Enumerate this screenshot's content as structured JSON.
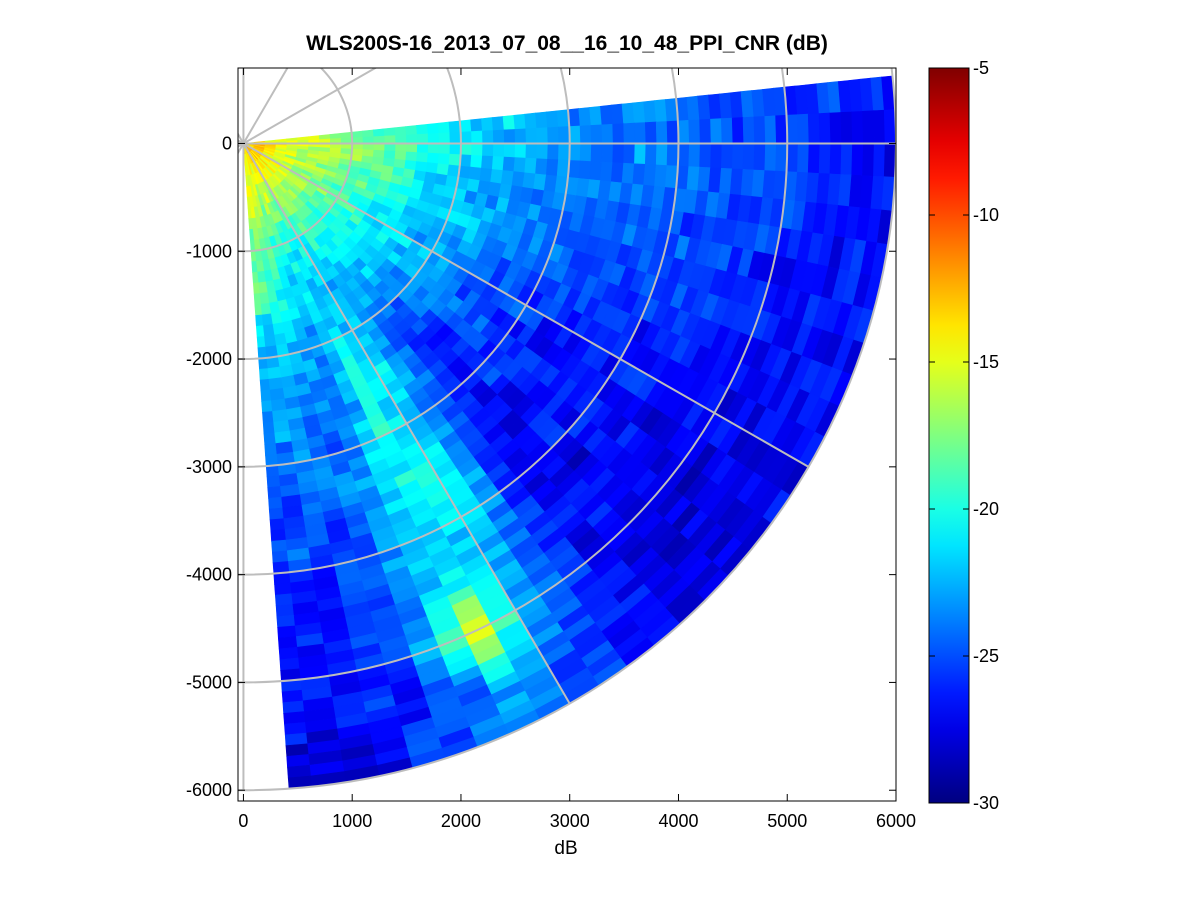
{
  "chart_data": {
    "type": "heatmap",
    "subtype": "polar-sector-ppi",
    "title": "WLS200S-16_2013_07_08__16_10_48_PPI_CNR (dB)",
    "xlabel": "dB",
    "ylabel": "",
    "xlim": [
      -50,
      6000
    ],
    "ylim": [
      -6100,
      700
    ],
    "x_ticks": [
      0,
      1000,
      2000,
      3000,
      4000,
      5000,
      6000
    ],
    "x_tick_labels": [
      "0",
      "1000",
      "2000",
      "3000",
      "4000",
      "5000",
      "6000"
    ],
    "y_ticks": [
      0,
      -1000,
      -2000,
      -3000,
      -4000,
      -5000,
      -6000
    ],
    "y_tick_labels": [
      "0",
      "-1000",
      "-2000",
      "-3000",
      "-4000",
      "-5000",
      "-6000"
    ],
    "sector": {
      "range_max_m": 6000,
      "bearing_start_deg": 84,
      "bearing_end_deg": 176,
      "range_gate_m": 100,
      "beam_width_deg": 3
    },
    "grid": {
      "range_rings_m": [
        1000,
        2000,
        3000,
        4000,
        5000,
        6000
      ],
      "spokes_deg": [
        0,
        30,
        60,
        90,
        120,
        150
      ],
      "color": "#bdbdbd"
    },
    "colorbar": {
      "min": -30,
      "max": -5,
      "ticks": [
        -5,
        -10,
        -15,
        -20,
        -25,
        -30
      ],
      "tick_labels": [
        "-5",
        "-10",
        "-15",
        "-20",
        "-25",
        "-30"
      ],
      "colormap": "jet"
    },
    "cnr_profile": {
      "bearings_deg": [
        84,
        90,
        100,
        110,
        120,
        130,
        140,
        150,
        155,
        160,
        165,
        170,
        176
      ],
      "ranges_m": [
        100,
        500,
        1000,
        1500,
        2000,
        2500,
        3000,
        3500,
        4000,
        4500,
        5000,
        5500,
        6000
      ],
      "values_db": [
        [
          -14,
          -16,
          -18,
          -19.5,
          -21,
          -22,
          -23,
          -23.5,
          -24,
          -24.5,
          -25.5,
          -26,
          -26.5
        ],
        [
          -12,
          -15,
          -17,
          -19,
          -20.5,
          -22,
          -23,
          -23.5,
          -24,
          -25,
          -25.5,
          -26,
          -26.5
        ],
        [
          -13,
          -15.5,
          -17.5,
          -20,
          -21.5,
          -23,
          -24,
          -24,
          -24.5,
          -25,
          -26,
          -26.5,
          -27
        ],
        [
          -13,
          -16,
          -18,
          -20.5,
          -22,
          -23.5,
          -24.5,
          -25,
          -25.5,
          -26,
          -26.5,
          -27,
          -27
        ],
        [
          -13,
          -16,
          -18.5,
          -21,
          -23,
          -24.5,
          -25.5,
          -26,
          -26.5,
          -27,
          -27,
          -27.5,
          -27.5
        ],
        [
          -13,
          -16,
          -19,
          -21.5,
          -23.5,
          -25,
          -26,
          -26.5,
          -27,
          -27,
          -27.5,
          -27.5,
          -27.5
        ],
        [
          -13,
          -16,
          -19.5,
          -22,
          -25,
          -25.5,
          -26,
          -26.5,
          -27,
          -27,
          -27.5,
          -27.5,
          -27.5
        ],
        [
          -13,
          -16,
          -19.5,
          -22,
          -21.5,
          -21,
          -21,
          -20.5,
          -21,
          -22,
          -23,
          -24,
          -24
        ],
        [
          -13,
          -16,
          -19.5,
          -22,
          -21.5,
          -21,
          -20.5,
          -20,
          -21,
          -21.5,
          -13,
          -22,
          -22
        ],
        [
          -13,
          -16,
          -19.5,
          -22,
          -24.5,
          -24,
          -23.5,
          -22.5,
          -23,
          -23.5,
          -23,
          -25,
          -25
        ],
        [
          -13,
          -16,
          -19,
          -21,
          -22.5,
          -23.5,
          -24.5,
          -25,
          -25.5,
          -26,
          -26,
          -26.5,
          -27
        ],
        [
          -13,
          -15.5,
          -18,
          -20,
          -21.5,
          -23,
          -24,
          -25,
          -25.5,
          -26,
          -26.5,
          -27,
          -27.5
        ],
        [
          -13,
          -15.5,
          -17.5,
          -19.5,
          -21.5,
          -23,
          -24,
          -25,
          -25.5,
          -26,
          -26.5,
          -27,
          -27.5
        ]
      ]
    }
  }
}
